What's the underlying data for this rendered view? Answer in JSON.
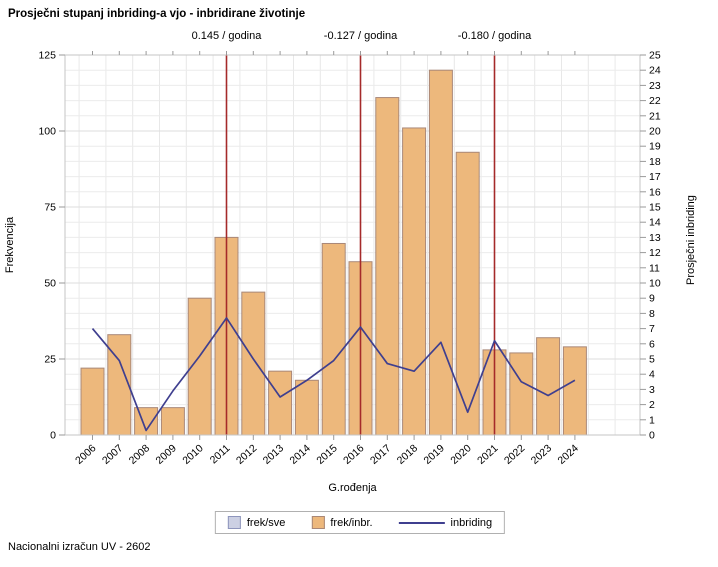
{
  "title": "Prosječni stupanj inbriding-a vjo - inbridirane životinje",
  "footer": "Nacionalni izračun UV - 2602",
  "annotations": [
    {
      "label": "0.145 / godina",
      "year": "2011"
    },
    {
      "label": "-0.127 / godina",
      "year": "2016"
    },
    {
      "label": "-0.180 / godina",
      "year": "2021"
    }
  ],
  "legend": {
    "items": [
      {
        "label": "frek/sve",
        "swatch": "box-gray"
      },
      {
        "label": "frek/inbr.",
        "swatch": "box-orange"
      },
      {
        "label": "inbriding",
        "swatch": "line"
      }
    ]
  },
  "colors": {
    "bar_fill": "#edb87c",
    "bar_stroke": "#a98878",
    "line": "#3f3f8f",
    "ref_line": "#a52a2a",
    "grid_major": "#dedede",
    "grid_minor": "#ebebeb",
    "grid_vertical": "#e8e8e8",
    "frame": "#c6c6c6",
    "tick": "#9a9a9a",
    "legend_gray_fill": "#ccd0e3",
    "legend_gray_stroke": "#8e95bc"
  },
  "chart_data": {
    "type": "bar",
    "subtype": "bar+line dual axis",
    "title": "Prosječni stupanj inbriding-a vjo - inbridirane životinje",
    "categories": [
      "2006",
      "2007",
      "2008",
      "2009",
      "2010",
      "2011",
      "2012",
      "2013",
      "2014",
      "2015",
      "2016",
      "2017",
      "2018",
      "2019",
      "2020",
      "2021",
      "2022",
      "2023",
      "2024"
    ],
    "series": [
      {
        "name": "frek/inbr.",
        "type": "bar",
        "axis": "left",
        "values": [
          22,
          33,
          9,
          9,
          45,
          65,
          47,
          21,
          18,
          63,
          57,
          111,
          101,
          120,
          93,
          28,
          27,
          32,
          29
        ]
      },
      {
        "name": "inbriding",
        "type": "line",
        "axis": "right",
        "values": [
          7.0,
          4.9,
          0.3,
          2.9,
          5.2,
          7.7,
          5.0,
          2.5,
          3.6,
          4.9,
          7.1,
          4.7,
          4.2,
          6.1,
          1.5,
          6.2,
          3.5,
          2.6,
          3.6
        ]
      }
    ],
    "left_axis": {
      "label": "Frekvencija",
      "min": 0,
      "max": 125,
      "major_ticks": [
        0,
        25,
        50,
        75,
        100,
        125
      ],
      "minor_step": 5
    },
    "right_axis": {
      "label": "Prosječni inbriding",
      "min": 0,
      "max": 25,
      "tick_step": 1
    },
    "x_axis": {
      "label": "G.rođenja"
    },
    "reference_lines": {
      "years": [
        "2011",
        "2016",
        "2021"
      ]
    },
    "grid": true,
    "legend_position": "bottom-center"
  }
}
